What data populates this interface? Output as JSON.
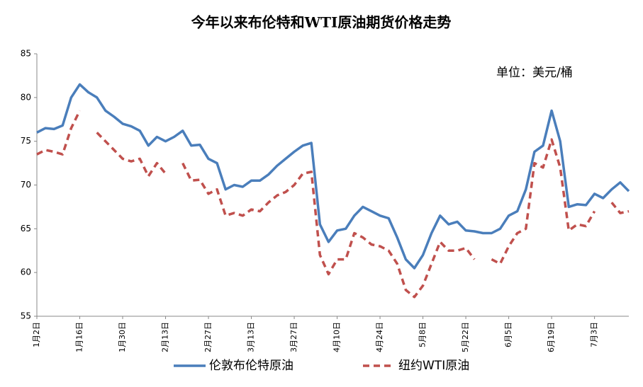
{
  "chart_data": {
    "type": "line",
    "title": "今年以来布伦特和WTI原油期货价格走势",
    "annotation": "单位：美元/桶",
    "categories": [
      "1月2日",
      null,
      null,
      null,
      null,
      "1月16日",
      null,
      null,
      null,
      null,
      "1月30日",
      null,
      null,
      null,
      null,
      "2月13日",
      null,
      null,
      null,
      null,
      "2月27日",
      null,
      null,
      null,
      null,
      "3月13日",
      null,
      null,
      null,
      null,
      "3月27日",
      null,
      null,
      null,
      null,
      "4月10日",
      null,
      null,
      null,
      null,
      "4月24日",
      null,
      null,
      null,
      null,
      "5月8日",
      null,
      null,
      null,
      null,
      "5月22日",
      null,
      null,
      null,
      null,
      "6月5日",
      null,
      null,
      null,
      null,
      "6月19日",
      null,
      null,
      null,
      null,
      "7月3日",
      null,
      null,
      null,
      null
    ],
    "series": [
      {
        "name": "伦敦布伦特原油",
        "color": "#4a7ebb",
        "dash": false,
        "values": [
          76.0,
          76.5,
          76.4,
          76.8,
          80.0,
          81.5,
          80.6,
          80.0,
          78.5,
          77.8,
          77.0,
          76.7,
          76.2,
          74.5,
          75.5,
          75.0,
          75.5,
          76.2,
          74.5,
          74.6,
          73.0,
          72.5,
          69.5,
          70.0,
          69.8,
          70.5,
          70.5,
          71.2,
          72.2,
          73.0,
          73.8,
          74.5,
          74.8,
          65.5,
          63.5,
          64.8,
          65.0,
          66.5,
          67.5,
          67.0,
          66.5,
          66.2,
          64.0,
          61.5,
          60.5,
          62.0,
          64.5,
          66.5,
          65.5,
          65.8,
          64.8,
          64.7,
          64.5,
          64.5,
          65.0,
          66.5,
          67.0,
          69.5,
          73.8,
          74.5,
          78.5,
          75.0,
          67.5,
          67.8,
          67.7,
          69.0,
          68.5,
          69.5,
          70.3,
          69.3
        ]
      },
      {
        "name": "纽约WTI原油",
        "color": "#c0504d",
        "dash": true,
        "values": [
          73.5,
          74.0,
          73.8,
          73.5,
          76.5,
          78.5,
          null,
          76.0,
          75.0,
          74.0,
          73.0,
          72.7,
          73.0,
          71.0,
          72.5,
          71.3,
          null,
          72.5,
          70.5,
          70.6,
          69.0,
          69.5,
          66.5,
          66.8,
          66.5,
          67.2,
          67.0,
          68.0,
          68.8,
          69.2,
          70.0,
          71.3,
          71.5,
          62.0,
          59.8,
          61.5,
          61.5,
          64.5,
          64.0,
          63.2,
          63.0,
          62.5,
          61.0,
          58.0,
          57.2,
          58.5,
          61.0,
          63.5,
          62.5,
          62.5,
          62.8,
          61.5,
          null,
          61.5,
          61.0,
          63.0,
          64.5,
          65.0,
          72.5,
          72.0,
          75.2,
          72.0,
          64.8,
          65.5,
          65.3,
          67.0,
          null,
          68.0,
          66.8,
          67.0
        ]
      }
    ],
    "ylim": [
      55,
      85
    ],
    "yticks": [
      55,
      60,
      65,
      70,
      75,
      80,
      85
    ],
    "grid": false
  }
}
